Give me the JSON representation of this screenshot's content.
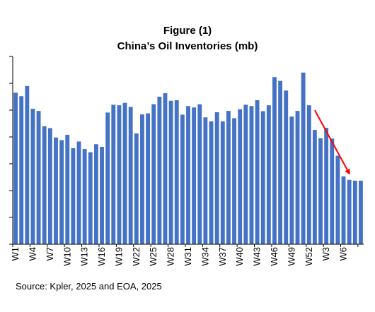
{
  "figure_label": "Figure (1)",
  "chart_data": {
    "type": "bar",
    "title": "China’s Oil Inventories (mb)",
    "source": "Source: Kpler, 2025 and EOA, 2025",
    "xlabel": "",
    "ylabel": "",
    "grid": false,
    "legend": "none",
    "ylim": [
      0,
      7
    ],
    "yticks": [
      0,
      1,
      2,
      3,
      4,
      5,
      6,
      7
    ],
    "ytick_labels_visible": false,
    "bar_color": "#4472C4",
    "annotation": {
      "type": "arrow",
      "color": "#FF0000",
      "from_category": "W53",
      "to_category": "W59",
      "direction": "down"
    },
    "categories": [
      "W1",
      "W2",
      "W3",
      "W4",
      "W5",
      "W6",
      "W7",
      "W8",
      "W9",
      "W10",
      "W11",
      "W12",
      "W13",
      "W14",
      "W15",
      "W16",
      "W17",
      "W18",
      "W19",
      "W20",
      "W21",
      "W22",
      "W23",
      "W24",
      "W25",
      "W26",
      "W27",
      "W28",
      "W29",
      "W30",
      "W31",
      "W32",
      "W33",
      "W34",
      "W35",
      "W36",
      "W37",
      "W38",
      "W39",
      "W40",
      "W41",
      "W42",
      "W43",
      "W44",
      "W45",
      "W46",
      "W47",
      "W48",
      "W49",
      "W50",
      "W51",
      "W52",
      "W53",
      "W54",
      "W55",
      "W56",
      "W57",
      "W58",
      "W59",
      "W60",
      "W61"
    ],
    "tick_labels": [
      "W1",
      "W4",
      "W7",
      "W10",
      "W13",
      "W16",
      "W19",
      "W22",
      "W25",
      "W28",
      "W31",
      "W34",
      "W37",
      "W40",
      "W43",
      "W46",
      "W49",
      "W52",
      "W3",
      "W6"
    ],
    "values": [
      5.65,
      5.52,
      5.9,
      5.05,
      4.97,
      4.4,
      4.33,
      3.98,
      3.88,
      4.08,
      3.58,
      3.83,
      3.55,
      3.43,
      3.73,
      3.63,
      4.91,
      5.2,
      5.18,
      5.27,
      5.12,
      4.13,
      4.84,
      4.88,
      5.22,
      5.5,
      5.63,
      5.35,
      5.37,
      4.83,
      5.15,
      5.1,
      5.22,
      4.73,
      4.58,
      4.92,
      4.58,
      4.97,
      4.7,
      5.03,
      5.2,
      5.15,
      5.37,
      4.96,
      5.18,
      6.23,
      6.09,
      5.73,
      4.76,
      4.97,
      6.4,
      5.18,
      4.26,
      3.95,
      4.34,
      3.94,
      3.3,
      2.53,
      2.4,
      2.37,
      2.37
    ]
  }
}
